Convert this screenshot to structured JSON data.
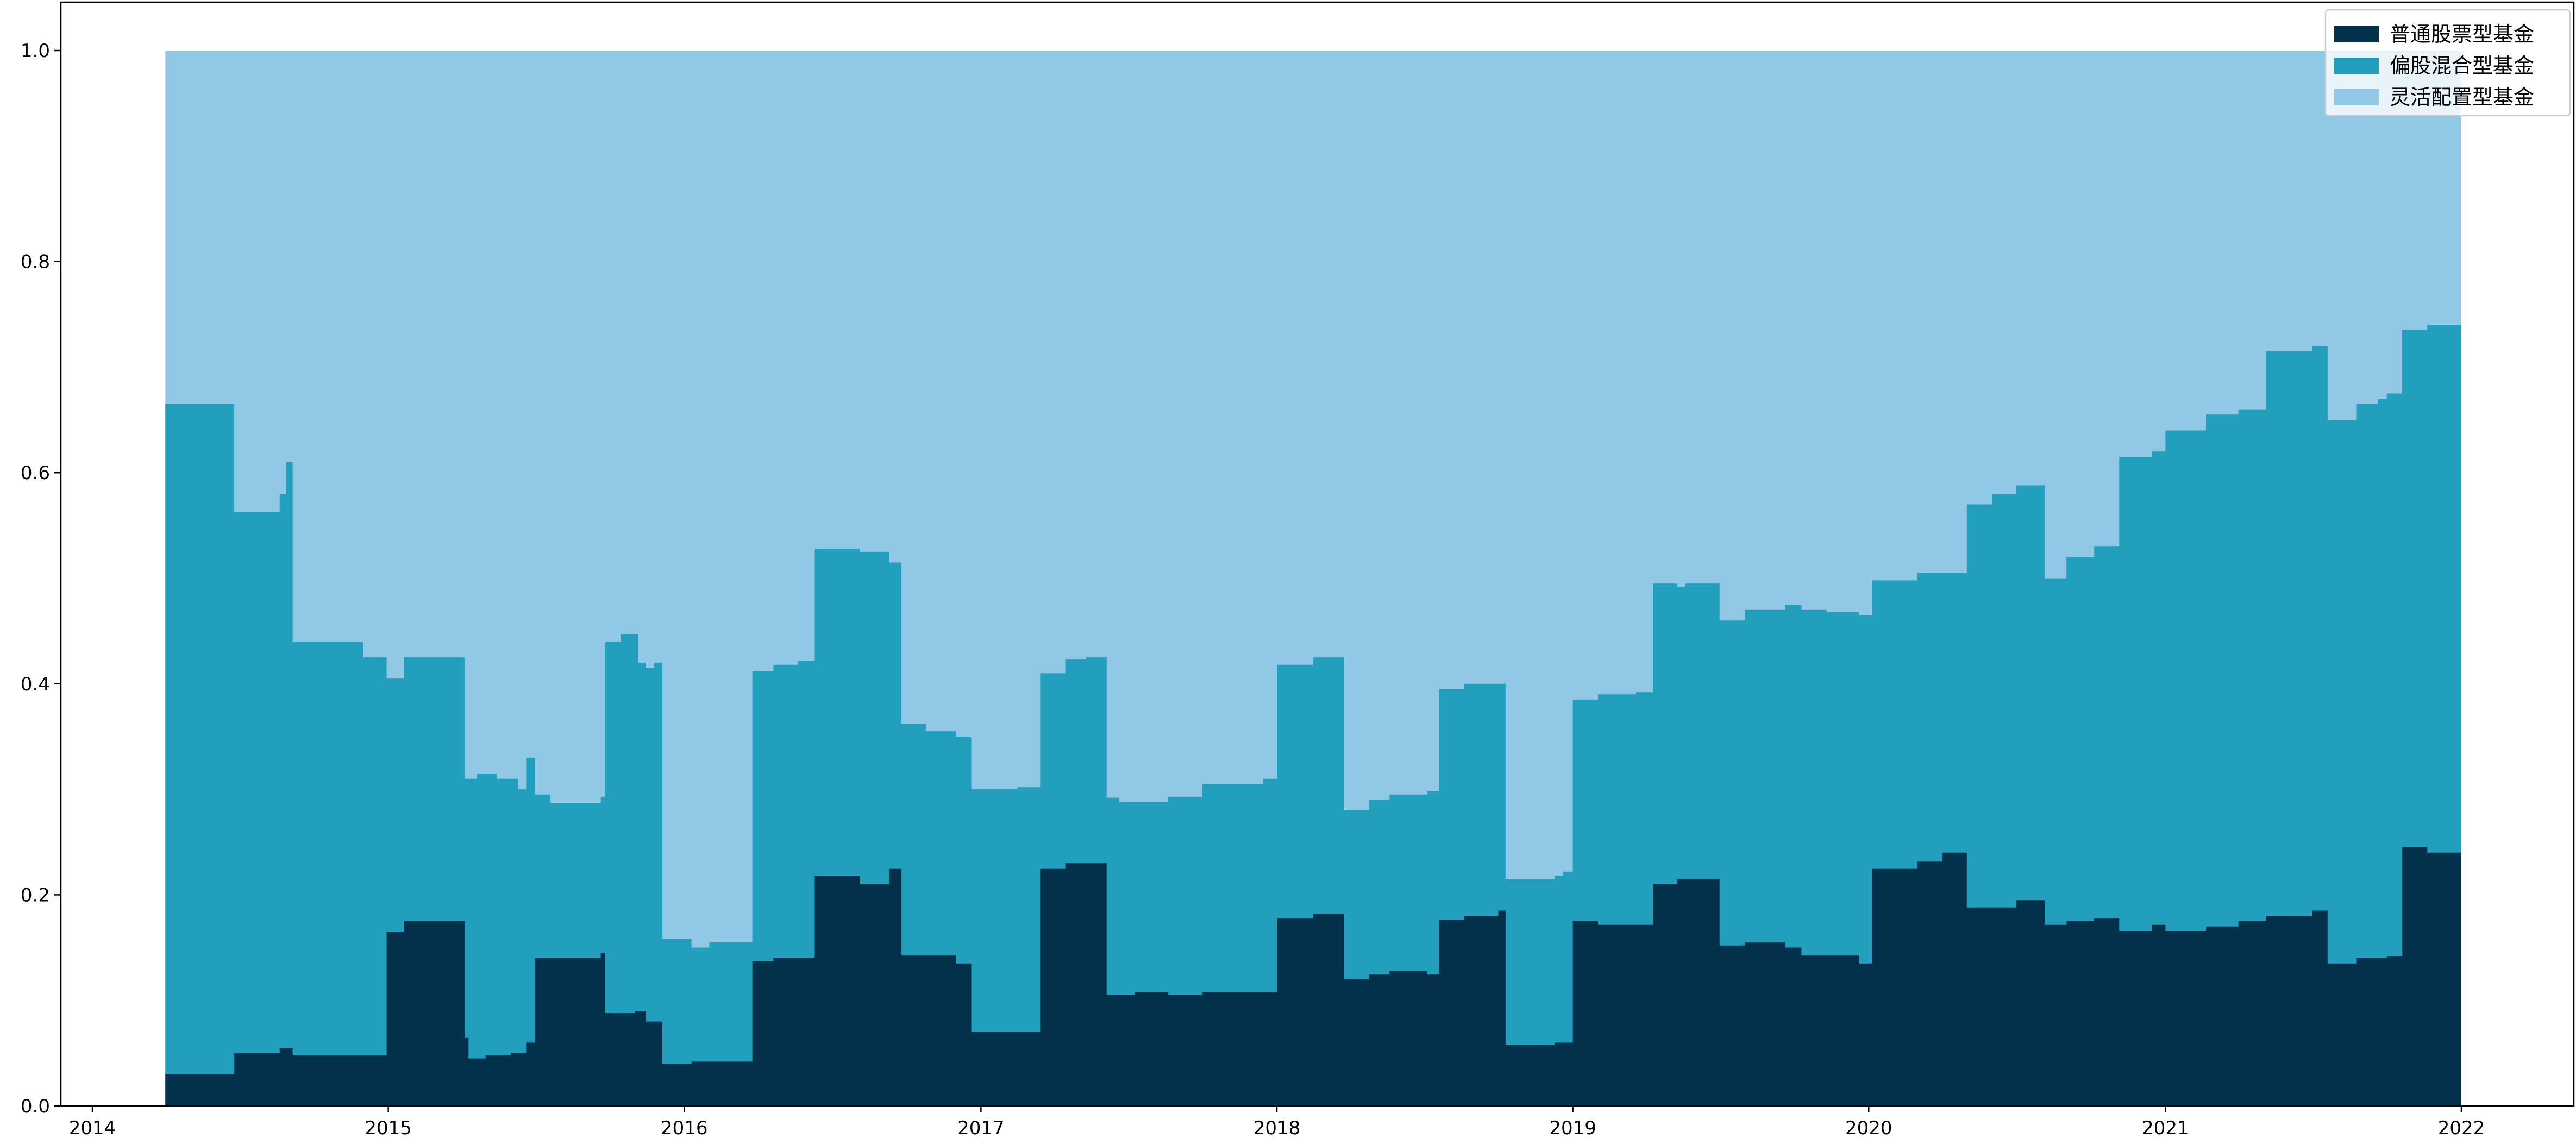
{
  "chart_data": {
    "type": "area",
    "stacked": true,
    "title": "",
    "xlabel": "",
    "ylabel": "",
    "xlim": [
      "2014-01-01",
      "2022-01-01"
    ],
    "ylim": [
      0,
      1.05
    ],
    "x_ticks": [
      "2014",
      "2015",
      "2016",
      "2017",
      "2018",
      "2019",
      "2020",
      "2021",
      "2022"
    ],
    "y_ticks": [
      "0.0",
      "0.2",
      "0.4",
      "0.6",
      "0.8",
      "1.0"
    ],
    "grid": false,
    "legend_position": "top-right",
    "series": [
      {
        "name": "普通股票型基金",
        "color": "#03304a",
        "points": [
          [
            "2014-04-01",
            0.03
          ],
          [
            "2014-06-25",
            0.05
          ],
          [
            "2014-08-20",
            0.055
          ],
          [
            "2014-09-05",
            0.048
          ],
          [
            "2014-12-30",
            0.165
          ],
          [
            "2015-01-20",
            0.175
          ],
          [
            "2015-04-05",
            0.065
          ],
          [
            "2015-04-10",
            0.045
          ],
          [
            "2015-05-01",
            0.048
          ],
          [
            "2015-06-01",
            0.05
          ],
          [
            "2015-06-20",
            0.06
          ],
          [
            "2015-07-01",
            0.14
          ],
          [
            "2015-09-20",
            0.145
          ],
          [
            "2015-09-25",
            0.088
          ],
          [
            "2015-11-01",
            0.09
          ],
          [
            "2015-11-15",
            0.08
          ],
          [
            "2015-12-05",
            0.04
          ],
          [
            "2016-01-10",
            0.042
          ],
          [
            "2016-03-25",
            0.137
          ],
          [
            "2016-04-20",
            0.14
          ],
          [
            "2016-06-10",
            0.218
          ],
          [
            "2016-08-05",
            0.21
          ],
          [
            "2016-09-10",
            0.225
          ],
          [
            "2016-09-25",
            0.143
          ],
          [
            "2016-12-01",
            0.135
          ],
          [
            "2016-12-20",
            0.07
          ],
          [
            "2017-03-15",
            0.225
          ],
          [
            "2017-04-15",
            0.23
          ],
          [
            "2017-06-05",
            0.105
          ],
          [
            "2017-07-10",
            0.108
          ],
          [
            "2017-08-20",
            0.105
          ],
          [
            "2017-10-01",
            0.108
          ],
          [
            "2017-12-15",
            0.108
          ],
          [
            "2018-01-01",
            0.178
          ],
          [
            "2018-02-15",
            0.182
          ],
          [
            "2018-03-25",
            0.12
          ],
          [
            "2018-04-25",
            0.125
          ],
          [
            "2018-05-20",
            0.128
          ],
          [
            "2018-07-05",
            0.125
          ],
          [
            "2018-07-20",
            0.176
          ],
          [
            "2018-08-20",
            0.18
          ],
          [
            "2018-10-01",
            0.185
          ],
          [
            "2018-10-10",
            0.058
          ],
          [
            "2018-12-10",
            0.06
          ],
          [
            "2019-01-01",
            0.175
          ],
          [
            "2019-02-01",
            0.172
          ],
          [
            "2019-04-10",
            0.21
          ],
          [
            "2019-05-10",
            0.215
          ],
          [
            "2019-07-01",
            0.152
          ],
          [
            "2019-08-01",
            0.155
          ],
          [
            "2019-09-20",
            0.15
          ],
          [
            "2019-10-10",
            0.143
          ],
          [
            "2019-12-20",
            0.135
          ],
          [
            "2020-01-05",
            0.225
          ],
          [
            "2020-03-01",
            0.232
          ],
          [
            "2020-04-01",
            0.24
          ],
          [
            "2020-05-01",
            0.188
          ],
          [
            "2020-07-01",
            0.195
          ],
          [
            "2020-08-05",
            0.172
          ],
          [
            "2020-09-01",
            0.175
          ],
          [
            "2020-10-05",
            0.178
          ],
          [
            "2020-11-05",
            0.166
          ],
          [
            "2020-12-15",
            0.172
          ],
          [
            "2021-01-01",
            0.166
          ],
          [
            "2021-02-20",
            0.17
          ],
          [
            "2021-04-01",
            0.175
          ],
          [
            "2021-05-05",
            0.18
          ],
          [
            "2021-07-01",
            0.185
          ],
          [
            "2021-07-20",
            0.135
          ],
          [
            "2021-08-25",
            0.14
          ],
          [
            "2021-10-01",
            0.142
          ],
          [
            "2021-10-20",
            0.245
          ],
          [
            "2021-11-20",
            0.24
          ],
          [
            "2022-01-01",
            0.24
          ]
        ]
      },
      {
        "name": "偏股混合型基金",
        "color": "#219fbd",
        "points": [
          [
            "2014-04-01",
            0.665
          ],
          [
            "2014-06-25",
            0.563
          ],
          [
            "2014-08-20",
            0.58
          ],
          [
            "2014-08-28",
            0.61
          ],
          [
            "2014-09-05",
            0.44
          ],
          [
            "2014-12-01",
            0.425
          ],
          [
            "2014-12-30",
            0.405
          ],
          [
            "2015-01-20",
            0.425
          ],
          [
            "2015-04-05",
            0.31
          ],
          [
            "2015-04-20",
            0.315
          ],
          [
            "2015-05-15",
            0.31
          ],
          [
            "2015-06-10",
            0.3
          ],
          [
            "2015-06-20",
            0.33
          ],
          [
            "2015-07-01",
            0.295
          ],
          [
            "2015-07-20",
            0.287
          ],
          [
            "2015-09-20",
            0.293
          ],
          [
            "2015-09-25",
            0.44
          ],
          [
            "2015-10-15",
            0.447
          ],
          [
            "2015-11-05",
            0.42
          ],
          [
            "2015-11-15",
            0.415
          ],
          [
            "2015-11-25",
            0.42
          ],
          [
            "2015-12-05",
            0.158
          ],
          [
            "2016-01-10",
            0.15
          ],
          [
            "2016-02-01",
            0.155
          ],
          [
            "2016-03-25",
            0.412
          ],
          [
            "2016-04-20",
            0.418
          ],
          [
            "2016-05-20",
            0.422
          ],
          [
            "2016-06-10",
            0.528
          ],
          [
            "2016-08-05",
            0.525
          ],
          [
            "2016-09-10",
            0.515
          ],
          [
            "2016-09-25",
            0.362
          ],
          [
            "2016-10-25",
            0.355
          ],
          [
            "2016-12-01",
            0.35
          ],
          [
            "2016-12-20",
            0.3
          ],
          [
            "2017-02-15",
            0.302
          ],
          [
            "2017-03-15",
            0.41
          ],
          [
            "2017-04-15",
            0.423
          ],
          [
            "2017-05-10",
            0.425
          ],
          [
            "2017-06-05",
            0.292
          ],
          [
            "2017-06-20",
            0.288
          ],
          [
            "2017-08-20",
            0.293
          ],
          [
            "2017-10-01",
            0.305
          ],
          [
            "2017-12-15",
            0.31
          ],
          [
            "2018-01-01",
            0.418
          ],
          [
            "2018-02-15",
            0.425
          ],
          [
            "2018-03-25",
            0.28
          ],
          [
            "2018-04-25",
            0.29
          ],
          [
            "2018-05-20",
            0.295
          ],
          [
            "2018-07-05",
            0.298
          ],
          [
            "2018-07-20",
            0.395
          ],
          [
            "2018-08-20",
            0.4
          ],
          [
            "2018-10-01",
            0.4
          ],
          [
            "2018-10-10",
            0.215
          ],
          [
            "2018-12-10",
            0.218
          ],
          [
            "2018-12-20",
            0.222
          ],
          [
            "2019-01-01",
            0.385
          ],
          [
            "2019-02-01",
            0.39
          ],
          [
            "2019-03-20",
            0.392
          ],
          [
            "2019-04-10",
            0.495
          ],
          [
            "2019-05-10",
            0.492
          ],
          [
            "2019-05-20",
            0.495
          ],
          [
            "2019-07-01",
            0.46
          ],
          [
            "2019-08-01",
            0.47
          ],
          [
            "2019-09-20",
            0.475
          ],
          [
            "2019-10-10",
            0.47
          ],
          [
            "2019-11-10",
            0.468
          ],
          [
            "2019-12-20",
            0.465
          ],
          [
            "2020-01-05",
            0.498
          ],
          [
            "2020-03-01",
            0.505
          ],
          [
            "2020-04-01",
            0.505
          ],
          [
            "2020-05-01",
            0.57
          ],
          [
            "2020-06-01",
            0.58
          ],
          [
            "2020-07-01",
            0.588
          ],
          [
            "2020-08-05",
            0.5
          ],
          [
            "2020-09-01",
            0.52
          ],
          [
            "2020-10-05",
            0.53
          ],
          [
            "2020-11-05",
            0.615
          ],
          [
            "2020-12-15",
            0.62
          ],
          [
            "2021-01-01",
            0.64
          ],
          [
            "2021-02-20",
            0.655
          ],
          [
            "2021-04-01",
            0.66
          ],
          [
            "2021-05-05",
            0.715
          ],
          [
            "2021-07-01",
            0.72
          ],
          [
            "2021-07-20",
            0.65
          ],
          [
            "2021-08-25",
            0.665
          ],
          [
            "2021-09-20",
            0.67
          ],
          [
            "2021-10-01",
            0.675
          ],
          [
            "2021-10-20",
            0.735
          ],
          [
            "2021-11-20",
            0.74
          ],
          [
            "2022-01-01",
            0.74
          ]
        ]
      },
      {
        "name": "灵活配置型基金",
        "color": "#91c8e5",
        "points": [
          [
            "2014-04-01",
            1.0
          ],
          [
            "2022-01-01",
            1.0
          ]
        ]
      }
    ]
  }
}
